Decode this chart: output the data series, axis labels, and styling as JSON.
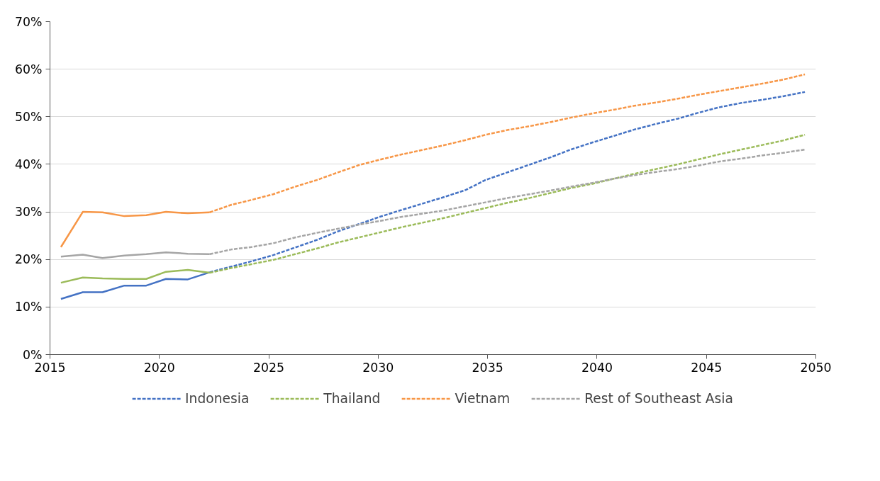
{
  "chart_data": {
    "type": "line",
    "x": [
      2015.5,
      2016.5,
      2017.4,
      2018.4,
      2019.4,
      2020.3,
      2021.3,
      2022.3,
      2023.3,
      2024.2,
      2025.2,
      2026.2,
      2027.2,
      2028.1,
      2029.1,
      2030.1,
      2031.0,
      2032.0,
      2033.0,
      2034.0,
      2034.9,
      2035.9,
      2036.9,
      2037.9,
      2038.8,
      2039.8,
      2040.8,
      2041.7,
      2042.7,
      2043.7,
      2044.6,
      2045.6,
      2046.6,
      2047.6,
      2048.5,
      2049.5
    ],
    "series": [
      {
        "color": "#4472c4",
        "line_style": "solid",
        "values": [
          11.7,
          13.1,
          13.1,
          14.5,
          14.5,
          15.9,
          15.8,
          17.3,
          null,
          null,
          null,
          null,
          null,
          null,
          null,
          null,
          null,
          null,
          null,
          null,
          null,
          null,
          null,
          null,
          null,
          null,
          null,
          null,
          null,
          null,
          null,
          null,
          null,
          null,
          null,
          null
        ]
      },
      {
        "color": "#9bbb59",
        "line_style": "solid",
        "values": [
          15.1,
          16.2,
          16.0,
          15.9,
          15.9,
          17.4,
          17.8,
          17.2,
          null,
          null,
          null,
          null,
          null,
          null,
          null,
          null,
          null,
          null,
          null,
          null,
          null,
          null,
          null,
          null,
          null,
          null,
          null,
          null,
          null,
          null,
          null,
          null,
          null,
          null,
          null,
          null
        ]
      },
      {
        "color": "#f79646",
        "line_style": "solid",
        "values": [
          22.6,
          30.0,
          29.9,
          29.1,
          29.3,
          30.0,
          29.7,
          29.9,
          null,
          null,
          null,
          null,
          null,
          null,
          null,
          null,
          null,
          null,
          null,
          null,
          null,
          null,
          null,
          null,
          null,
          null,
          null,
          null,
          null,
          null,
          null,
          null,
          null,
          null,
          null,
          null
        ]
      },
      {
        "color": "#a5a5a5",
        "line_style": "solid",
        "values": [
          20.6,
          21.0,
          20.3,
          20.8,
          21.1,
          21.5,
          21.2,
          21.1,
          null,
          null,
          null,
          null,
          null,
          null,
          null,
          null,
          null,
          null,
          null,
          null,
          null,
          null,
          null,
          null,
          null,
          null,
          null,
          null,
          null,
          null,
          null,
          null,
          null,
          null,
          null,
          null
        ]
      },
      {
        "name": "Indonesia",
        "color": "#4472c4",
        "line_style": "dashed",
        "values": [
          null,
          null,
          null,
          null,
          null,
          null,
          null,
          17.3,
          18.5,
          19.6,
          20.9,
          22.5,
          24.1,
          25.8,
          27.4,
          29.0,
          30.3,
          31.7,
          33.1,
          34.6,
          36.7,
          38.3,
          39.9,
          41.5,
          43.1,
          44.6,
          46.0,
          47.3,
          48.5,
          49.6,
          50.8,
          52.0,
          52.9,
          53.6,
          54.3,
          55.2
        ]
      },
      {
        "name": "Thailand",
        "color": "#9bbb59",
        "line_style": "dashed",
        "values": [
          null,
          null,
          null,
          null,
          null,
          null,
          null,
          17.2,
          18.2,
          19.0,
          19.9,
          21.1,
          22.3,
          23.5,
          24.6,
          25.7,
          26.7,
          27.7,
          28.7,
          29.8,
          30.8,
          31.9,
          32.9,
          34.0,
          35.0,
          35.9,
          37.0,
          38.0,
          39.0,
          40.0,
          41.0,
          42.1,
          43.1,
          44.1,
          45.0,
          46.2
        ]
      },
      {
        "name": "Vietnam",
        "color": "#f79646",
        "line_style": "dashed",
        "values": [
          null,
          null,
          null,
          null,
          null,
          null,
          null,
          29.9,
          31.5,
          32.5,
          33.7,
          35.3,
          36.7,
          38.2,
          39.8,
          41.0,
          42.0,
          43.0,
          44.0,
          45.1,
          46.2,
          47.2,
          48.0,
          48.9,
          49.8,
          50.7,
          51.5,
          52.3,
          53.0,
          53.8,
          54.6,
          55.4,
          56.2,
          57.0,
          57.8,
          58.9
        ]
      },
      {
        "name": "Rest of Southeast Asia",
        "color": "#a5a5a5",
        "line_style": "dashed",
        "values": [
          null,
          null,
          null,
          null,
          null,
          null,
          null,
          21.1,
          22.1,
          22.6,
          23.4,
          24.6,
          25.6,
          26.4,
          27.3,
          28.1,
          28.9,
          29.6,
          30.3,
          31.2,
          32.0,
          32.9,
          33.7,
          34.5,
          35.3,
          36.1,
          37.0,
          37.7,
          38.4,
          39.0,
          39.7,
          40.6,
          41.2,
          41.9,
          42.4,
          43.1
        ]
      }
    ],
    "xlim": [
      2015,
      2050
    ],
    "xticks": [
      2015,
      2020,
      2025,
      2030,
      2035,
      2040,
      2045,
      2050
    ],
    "ylim": [
      0,
      70
    ],
    "yticks": [
      {
        "value": 0,
        "label": "0%"
      },
      {
        "value": 10,
        "label": "10%"
      },
      {
        "value": 20,
        "label": "20%"
      },
      {
        "value": 30,
        "label": "30%"
      },
      {
        "value": 40,
        "label": "40%"
      },
      {
        "value": 50,
        "label": "50%"
      },
      {
        "value": 60,
        "label": "60%"
      },
      {
        "value": 70,
        "label": "70%"
      }
    ],
    "grid": "y",
    "legend": "bottom",
    "marker": "none"
  }
}
